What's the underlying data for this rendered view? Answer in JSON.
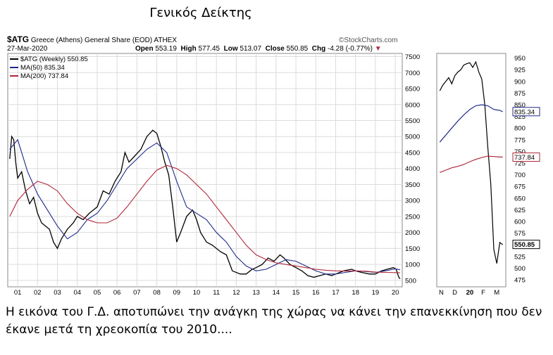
{
  "page_title": "Γενικός Δείκτης",
  "header": {
    "symbol": "$ATG",
    "name": "Greece (Athens) General Share (EOD) ATHEX",
    "brand": "©StockCharts.com",
    "date": "27-Mar-2020",
    "open_label": "Open",
    "open": "553.19",
    "high_label": "High",
    "high": "577.45",
    "low_label": "Low",
    "low": "513.07",
    "close_label": "Close",
    "close": "550.85",
    "chg_label": "Chg",
    "chg": "-4.28 (-0.77%)"
  },
  "legend": {
    "price": "$ATG (Weekly) 550.85",
    "ma50": "MA(50) 835.34",
    "ma200": "MA(200) 737.84"
  },
  "colors": {
    "price": "#000000",
    "ma50": "#1f2a8a",
    "ma200": "#b0273a",
    "grid": "#dcdcdc"
  },
  "caption": "Η εικόνα του Γ.Δ. αποτυπώνει την ανάγκη της χώρας να κάνει την επανεκκίνηση που δεν έκανε μετά τη χρεοκοπία του 2010....",
  "chart_data": [
    {
      "type": "line",
      "title": "",
      "x_tick_labels": [
        "01",
        "02",
        "03",
        "04",
        "05",
        "06",
        "07",
        "08",
        "09",
        "10",
        "11",
        "12",
        "13",
        "14",
        "15",
        "16",
        "17",
        "18",
        "19",
        "20"
      ],
      "y_tick_labels": [
        500,
        1000,
        1500,
        2000,
        2500,
        3000,
        3500,
        4000,
        4500,
        5000,
        5500,
        6000,
        6500,
        7000,
        7500
      ],
      "ylim": [
        300,
        7600
      ],
      "grid": true,
      "series": [
        {
          "name": "$ATG (Weekly)",
          "x": [
            2000.6,
            2000.7,
            2000.8,
            2000.9,
            2001.0,
            2001.2,
            2001.4,
            2001.6,
            2001.8,
            2002.0,
            2002.2,
            2002.4,
            2002.6,
            2002.8,
            2003.0,
            2003.2,
            2003.5,
            2003.8,
            2004.0,
            2004.3,
            2004.6,
            2005.0,
            2005.3,
            2005.6,
            2005.9,
            2006.2,
            2006.4,
            2006.6,
            2006.9,
            2007.2,
            2007.5,
            2007.8,
            2008.0,
            2008.2,
            2008.4,
            2008.6,
            2008.8,
            2009.0,
            2009.2,
            2009.5,
            2009.8,
            2010.0,
            2010.2,
            2010.5,
            2010.8,
            2011.2,
            2011.5,
            2011.8,
            2012.2,
            2012.5,
            2012.8,
            2013.0,
            2013.3,
            2013.6,
            2013.9,
            2014.2,
            2014.4,
            2014.7,
            2015.0,
            2015.3,
            2015.6,
            2015.9,
            2016.2,
            2016.5,
            2016.8,
            2017.0,
            2017.4,
            2017.8,
            2018.0,
            2018.3,
            2018.7,
            2019.0,
            2019.3,
            2019.6,
            2019.9,
            2020.05,
            2020.12,
            2020.18,
            2020.24
          ],
          "y": [
            4300,
            5000,
            4900,
            4200,
            3700,
            3900,
            3300,
            2900,
            3100,
            2600,
            2300,
            2200,
            2100,
            1700,
            1500,
            1800,
            2100,
            2300,
            2500,
            2400,
            2600,
            2800,
            3300,
            3200,
            3600,
            3900,
            4500,
            4200,
            4400,
            4600,
            5000,
            5200,
            5100,
            4700,
            4200,
            3800,
            2800,
            1700,
            2000,
            2500,
            2700,
            2400,
            2000,
            1700,
            1600,
            1400,
            1300,
            800,
            700,
            700,
            850,
            900,
            1000,
            1200,
            1100,
            1300,
            1200,
            1000,
            900,
            800,
            650,
            600,
            650,
            700,
            650,
            700,
            800,
            850,
            800,
            750,
            700,
            700,
            800,
            850,
            900,
            850,
            700,
            600,
            550
          ]
        },
        {
          "name": "MA(50)",
          "x": [
            2000.6,
            2001.0,
            2001.5,
            2002.0,
            2002.5,
            2003.0,
            2003.5,
            2004.0,
            2004.5,
            2005.0,
            2005.5,
            2006.0,
            2006.5,
            2007.0,
            2007.5,
            2008.0,
            2008.5,
            2009.0,
            2009.5,
            2010.0,
            2010.5,
            2011.0,
            2011.5,
            2012.0,
            2012.5,
            2013.0,
            2013.5,
            2014.0,
            2014.5,
            2015.0,
            2015.5,
            2016.0,
            2016.5,
            2017.0,
            2017.5,
            2018.0,
            2018.5,
            2019.0,
            2019.5,
            2020.0,
            2020.24
          ],
          "y": [
            4600,
            4900,
            3900,
            3200,
            2700,
            2200,
            1800,
            2000,
            2400,
            2600,
            3000,
            3500,
            4000,
            4300,
            4600,
            4800,
            4500,
            3600,
            2800,
            2600,
            2400,
            2000,
            1700,
            1250,
            950,
            800,
            850,
            1000,
            1150,
            1100,
            950,
            800,
            700,
            700,
            750,
            800,
            780,
            750,
            800,
            860,
            835
          ]
        },
        {
          "name": "MA(200)",
          "x": [
            2000.6,
            2001.0,
            2001.5,
            2002.0,
            2002.5,
            2003.0,
            2003.5,
            2004.0,
            2004.5,
            2005.0,
            2005.5,
            2006.0,
            2006.5,
            2007.0,
            2007.5,
            2008.0,
            2008.5,
            2009.0,
            2009.5,
            2010.0,
            2010.5,
            2011.0,
            2011.5,
            2012.0,
            2012.5,
            2013.0,
            2013.5,
            2014.0,
            2014.5,
            2015.0,
            2015.5,
            2016.0,
            2016.5,
            2017.0,
            2017.5,
            2018.0,
            2018.5,
            2019.0,
            2019.5,
            2020.0,
            2020.24
          ],
          "y": [
            2500,
            3000,
            3350,
            3600,
            3500,
            3300,
            2900,
            2600,
            2400,
            2300,
            2300,
            2450,
            2800,
            3200,
            3600,
            3950,
            4100,
            4000,
            3800,
            3500,
            3200,
            2800,
            2400,
            2000,
            1600,
            1300,
            1150,
            1050,
            1000,
            950,
            900,
            850,
            820,
            800,
            790,
            800,
            790,
            760,
            750,
            745,
            738
          ]
        }
      ]
    },
    {
      "type": "line",
      "title": "",
      "x_tick_labels": [
        "N",
        "D",
        "20",
        "F",
        "M"
      ],
      "y_tick_labels": [
        475,
        500,
        525,
        550,
        575,
        600,
        625,
        650,
        675,
        700,
        725,
        750,
        775,
        800,
        825,
        850,
        875,
        900,
        925,
        950
      ],
      "ylim": [
        460,
        960
      ],
      "grid": false,
      "value_labels": [
        "835.34",
        "737.84",
        "550.85"
      ],
      "series": [
        {
          "name": "$ATG (Weekly)",
          "x": [
            1,
            2,
            3,
            4,
            5,
            6,
            7,
            8,
            9,
            10,
            11,
            12,
            13,
            14,
            15,
            16,
            17,
            18,
            19,
            20,
            21,
            22
          ],
          "y": [
            880,
            892,
            900,
            908,
            895,
            912,
            920,
            925,
            935,
            938,
            940,
            930,
            942,
            920,
            905,
            850,
            760,
            680,
            540,
            510,
            555,
            550
          ]
        },
        {
          "name": "MA(50)",
          "x": [
            1,
            3,
            5,
            7,
            9,
            11,
            13,
            15,
            17,
            19,
            21,
            22
          ],
          "y": [
            770,
            785,
            800,
            815,
            828,
            840,
            848,
            850,
            848,
            840,
            838,
            835
          ]
        },
        {
          "name": "MA(200)",
          "x": [
            1,
            3,
            5,
            7,
            9,
            11,
            13,
            15,
            17,
            19,
            21,
            22
          ],
          "y": [
            705,
            710,
            715,
            718,
            722,
            728,
            733,
            737,
            740,
            739,
            738,
            738
          ]
        }
      ]
    }
  ]
}
